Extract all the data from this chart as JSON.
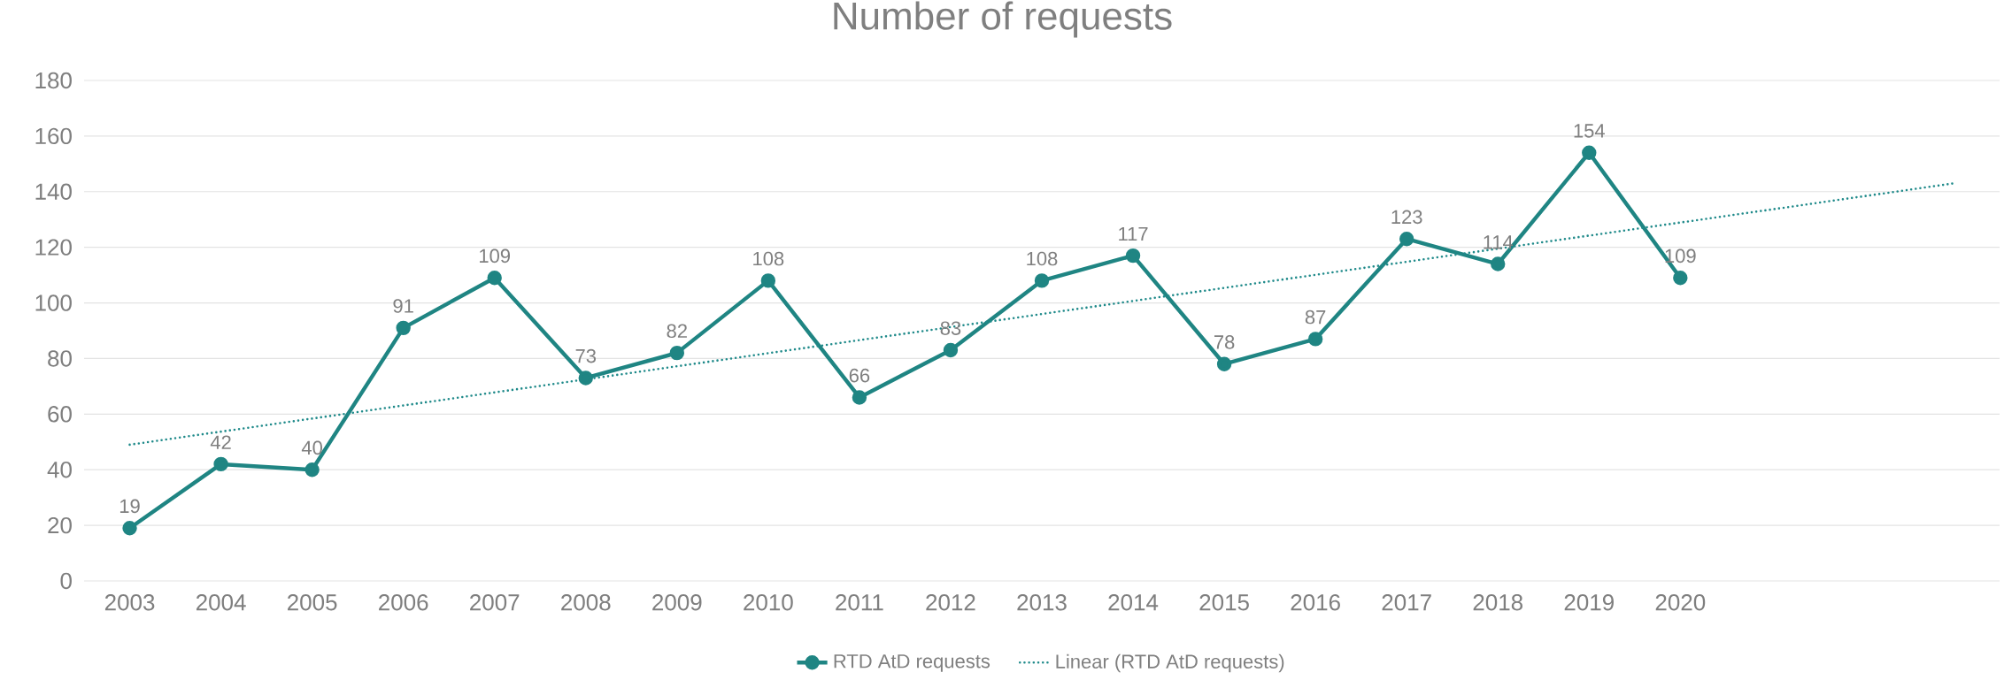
{
  "chart_data": {
    "type": "line",
    "title": "Number of requests",
    "x": [
      2003,
      2004,
      2005,
      2006,
      2007,
      2008,
      2009,
      2010,
      2011,
      2012,
      2013,
      2014,
      2015,
      2016,
      2017,
      2018,
      2019,
      2020
    ],
    "series": [
      {
        "name": "RTD AtD requests",
        "color": "#1f8583",
        "marker": "circle",
        "line_style": "solid",
        "values": [
          19,
          42,
          40,
          91,
          109,
          73,
          82,
          108,
          66,
          83,
          108,
          117,
          78,
          87,
          123,
          114,
          154,
          109
        ],
        "value_labels": [
          "19",
          "42",
          "40",
          "91",
          "109",
          "73",
          "82",
          "108",
          "66",
          "83",
          "108",
          "117",
          "78",
          "87",
          "123",
          "114",
          "154",
          "109"
        ]
      },
      {
        "name": "Linear (RTD AtD requests)",
        "color": "#1f8a8a",
        "marker": "none",
        "line_style": "dotted",
        "x": [
          2003,
          2023
        ],
        "values": [
          49,
          143
        ]
      }
    ],
    "xlim": [
      2002.5,
      2023.5
    ],
    "xticks": [
      2003,
      2004,
      2005,
      2006,
      2007,
      2008,
      2009,
      2010,
      2011,
      2012,
      2013,
      2014,
      2015,
      2016,
      2017,
      2018,
      2019,
      2020
    ],
    "ylim": [
      0,
      180
    ],
    "yticks": [
      0,
      20,
      40,
      60,
      80,
      100,
      120,
      140,
      160,
      180
    ],
    "grid": "y",
    "legend": "bottom"
  }
}
